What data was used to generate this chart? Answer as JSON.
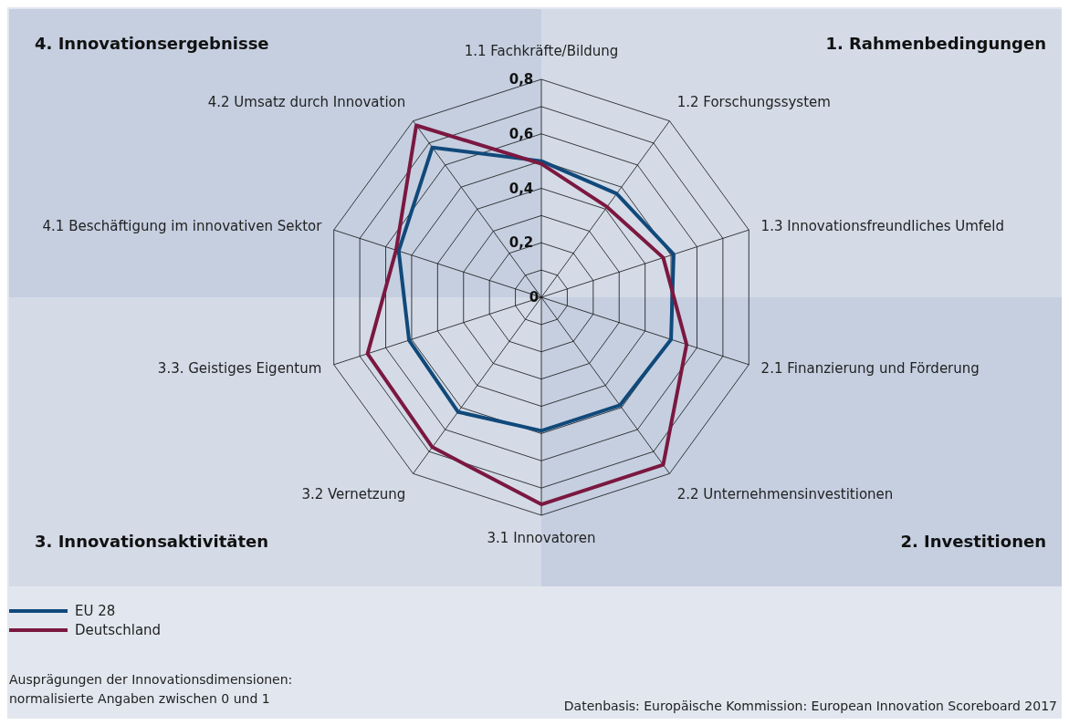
{
  "chart_data": {
    "type": "radar",
    "categories": [
      "1.1 Fachkräfte/Bildung",
      "1.2 Forschungssystem",
      "1.3 Innovationsfreundliches Umfeld",
      "2.1 Finanzierung und Förderung",
      "2.2 Unternehmensinvestitionen",
      "3.1 Innovatoren",
      "3.2 Vernetzung",
      "3.3. Geistiges Eigentum",
      "4.1 Beschäftigung im innovativen Sektor",
      "4.2 Umsatz durch Innovation"
    ],
    "series": [
      {
        "name": "EU 28",
        "color": "#10497a",
        "values": [
          0.5,
          0.47,
          0.51,
          0.5,
          0.49,
          0.49,
          0.52,
          0.51,
          0.55,
          0.68
        ]
      },
      {
        "name": "Deutschland",
        "color": "#7b1840",
        "values": [
          0.49,
          0.41,
          0.47,
          0.56,
          0.76,
          0.76,
          0.68,
          0.67,
          0.56,
          0.78
        ]
      }
    ],
    "ylim": [
      0,
      0.8
    ],
    "yticks": [
      {
        "value": 0,
        "label": "0"
      },
      {
        "value": 0.2,
        "label": "0,2"
      },
      {
        "value": 0.4,
        "label": "0,4"
      },
      {
        "value": 0.6,
        "label": "0,6"
      },
      {
        "value": 0.8,
        "label": "0,8"
      }
    ],
    "grid": true,
    "legend": "bottom left",
    "annotations": [
      "4.  Innovationsergebnisse",
      "1. Rahmenbedingungen",
      "3. Innovationsaktivitäten",
      "2. Investitionen",
      "Ausprägungen der Innovationsdimensionen:",
      "normalisierte Angaben zwischen 0 und 1",
      "Datenbasis: Europäische Kommission: European Innovation Scoreboard 2017"
    ]
  }
}
